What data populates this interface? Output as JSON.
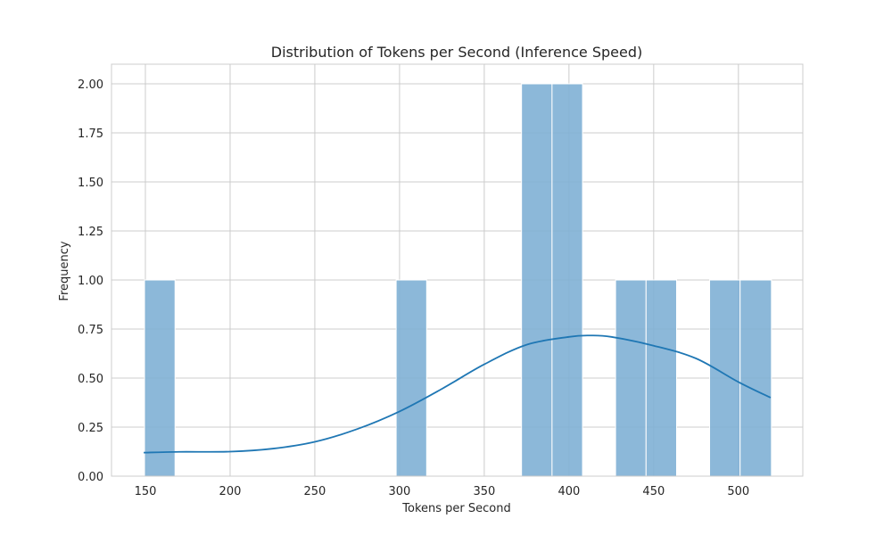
{
  "chart_data": {
    "type": "bar",
    "title": "Distribution of Tokens per Second (Inference Speed)",
    "xlabel": "Tokens per Second",
    "ylabel": "Frequency",
    "xlim": [
      130,
      538
    ],
    "ylim": [
      0,
      2.1
    ],
    "x_ticks": [
      150,
      200,
      250,
      300,
      350,
      400,
      450,
      500
    ],
    "x_tick_labels": [
      "150",
      "200",
      "250",
      "300",
      "350",
      "400",
      "450",
      "500"
    ],
    "y_ticks": [
      0,
      0.25,
      0.5,
      0.75,
      1.0,
      1.25,
      1.5,
      1.75,
      2.0
    ],
    "y_tick_labels": [
      "0.00",
      "0.25",
      "0.50",
      "0.75",
      "1.00",
      "1.25",
      "1.50",
      "1.75",
      "2.00"
    ],
    "grid": true,
    "bins": [
      {
        "x0": 149.5,
        "x1": 167.5,
        "count": 1
      },
      {
        "x0": 298,
        "x1": 316,
        "count": 1
      },
      {
        "x0": 372,
        "x1": 390,
        "count": 2
      },
      {
        "x0": 390,
        "x1": 408,
        "count": 2
      },
      {
        "x0": 427.5,
        "x1": 445.5,
        "count": 1
      },
      {
        "x0": 445.5,
        "x1": 463.5,
        "count": 1
      },
      {
        "x0": 483,
        "x1": 501,
        "count": 1
      },
      {
        "x0": 501,
        "x1": 519.5,
        "count": 1
      }
    ],
    "kde": {
      "x": [
        149,
        170,
        200,
        225,
        250,
        275,
        300,
        325,
        350,
        375,
        400,
        412,
        425,
        450,
        475,
        500,
        519
      ],
      "y": [
        0.12,
        0.124,
        0.125,
        0.14,
        0.175,
        0.24,
        0.33,
        0.445,
        0.57,
        0.67,
        0.71,
        0.717,
        0.71,
        0.665,
        0.6,
        0.48,
        0.4
      ]
    }
  }
}
